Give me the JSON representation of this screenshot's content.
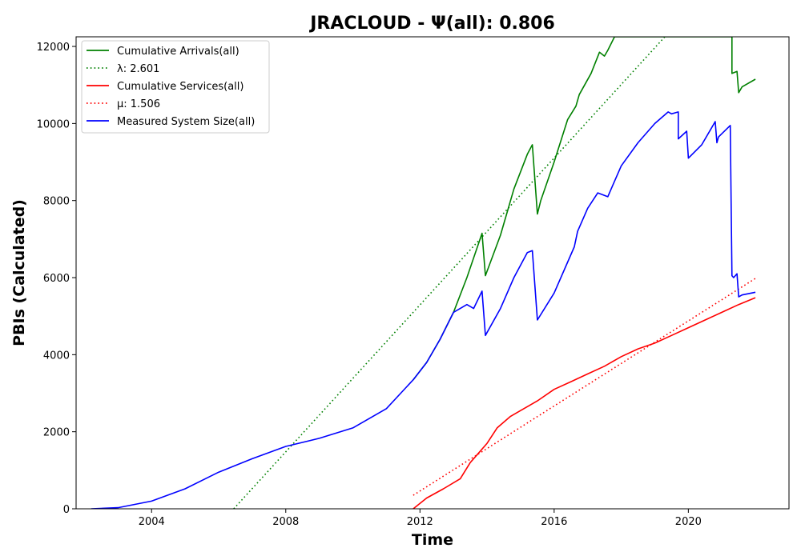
{
  "chart_data": {
    "type": "line",
    "title": "JRACLOUD -  Ψ(all): 0.806",
    "xlabel": "Time",
    "ylabel": "PBIs (Calculated)",
    "xlim": [
      2001.75,
      2023.0
    ],
    "ylim": [
      0,
      12250
    ],
    "x_ticks": [
      2004,
      2008,
      2012,
      2016,
      2020
    ],
    "y_ticks": [
      0,
      2000,
      4000,
      6000,
      8000,
      10000,
      12000
    ],
    "grid": false,
    "legend_position": "top-left",
    "series": [
      {
        "name": "Cumulative Arrivals(all)",
        "color": "#008000",
        "style": "solid",
        "x": [
          2011.8,
          2012.2,
          2012.6,
          2013.0,
          2013.4,
          2013.85,
          2013.95,
          2014.4,
          2014.8,
          2015.2,
          2015.35,
          2015.5,
          2015.6,
          2016.0,
          2016.4,
          2016.65,
          2016.75,
          2017.1,
          2017.35,
          2017.5,
          2017.6,
          2017.8,
          2021.3,
          2021.3,
          2021.45,
          2021.5,
          2021.6,
          2022.0
        ],
        "y": [
          3350,
          3800,
          4400,
          5100,
          6000,
          7150,
          6050,
          7100,
          8300,
          9200,
          9450,
          7650,
          8000,
          9000,
          10100,
          10450,
          10750,
          11300,
          11850,
          11750,
          11900,
          12250,
          12250,
          11300,
          11350,
          10800,
          10950,
          11150
        ]
      },
      {
        "name": "λ: 2.601",
        "color": "#008000",
        "style": "dotted",
        "x": [
          2006.45,
          2019.3
        ],
        "y": [
          0,
          12250
        ]
      },
      {
        "name": "Cumulative Services(all)",
        "color": "#ff0000",
        "style": "solid",
        "x": [
          2011.8,
          2012.2,
          2012.7,
          2013.2,
          2013.5,
          2013.8,
          2014.0,
          2014.3,
          2014.7,
          2015.0,
          2015.5,
          2016.0,
          2016.5,
          2017.0,
          2017.5,
          2018.0,
          2018.5,
          2019.0,
          2019.5,
          2020.0,
          2020.5,
          2021.0,
          2021.5,
          2022.0
        ],
        "y": [
          0,
          280,
          520,
          780,
          1200,
          1500,
          1700,
          2100,
          2400,
          2550,
          2800,
          3100,
          3300,
          3500,
          3700,
          3950,
          4150,
          4300,
          4500,
          4700,
          4900,
          5100,
          5300,
          5480
        ]
      },
      {
        "name": "μ: 1.506",
        "color": "#ff0000",
        "style": "dotted",
        "x": [
          2011.8,
          2022.0
        ],
        "y": [
          350,
          5980
        ]
      },
      {
        "name": "Measured System Size(all)",
        "color": "#0000ff",
        "style": "solid",
        "x": [
          2002.2,
          2003.0,
          2004.0,
          2005.0,
          2006.0,
          2007.0,
          2008.0,
          2009.0,
          2010.0,
          2011.0,
          2011.8,
          2012.2,
          2012.6,
          2013.0,
          2013.4,
          2013.6,
          2013.85,
          2013.95,
          2014.4,
          2014.8,
          2015.2,
          2015.35,
          2015.5,
          2016.0,
          2016.6,
          2016.7,
          2017.0,
          2017.3,
          2017.6,
          2018.0,
          2018.5,
          2019.0,
          2019.4,
          2019.5,
          2019.7,
          2019.7,
          2019.95,
          2020.0,
          2020.4,
          2020.8,
          2020.85,
          2020.9,
          2021.25,
          2021.3,
          2021.35,
          2021.45,
          2021.5,
          2021.6,
          2022.0
        ],
        "y": [
          0,
          30,
          200,
          520,
          950,
          1300,
          1620,
          1830,
          2100,
          2600,
          3350,
          3800,
          4400,
          5100,
          5300,
          5200,
          5650,
          4500,
          5200,
          6000,
          6650,
          6700,
          4900,
          5600,
          6800,
          7200,
          7800,
          8200,
          8100,
          8900,
          9500,
          10000,
          10300,
          10250,
          10300,
          9600,
          9800,
          9100,
          9450,
          10050,
          9500,
          9650,
          9950,
          6050,
          6000,
          6100,
          5500,
          5550,
          5620
        ]
      }
    ]
  }
}
